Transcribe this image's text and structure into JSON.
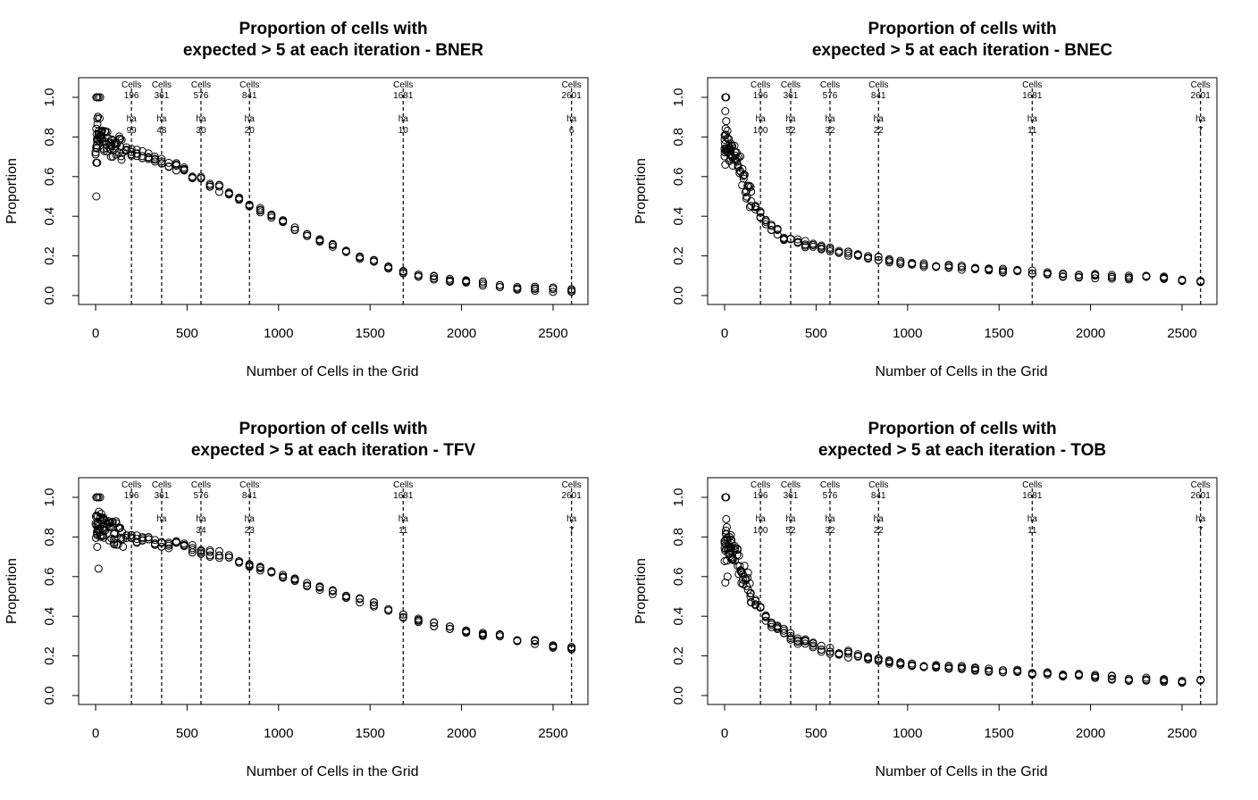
{
  "chart_data": [
    {
      "type": "scatter",
      "title": [
        "Proportion of cells with",
        "expected > 5 at each iteration -  BNER"
      ],
      "xlabel": "Number of Cells in the Grid",
      "ylabel": "Proportion",
      "xlim": [
        0,
        2600
      ],
      "ylim": [
        0,
        1
      ],
      "x_ticks": [
        "0",
        "500",
        "1000",
        "1500",
        "2000",
        "2500"
      ],
      "y_ticks": [
        "0.0",
        "0.2",
        "0.4",
        "0.6",
        "0.8",
        "1.0"
      ],
      "marker": "open-circle",
      "grid": false,
      "reference_lines": [
        {
          "x": 196,
          "cells_label": "Cells",
          "cells_value": "196",
          "ha_label": "ha",
          "ha_value": "99"
        },
        {
          "x": 361,
          "cells_label": "Cells",
          "cells_value": "361",
          "ha_label": "ha",
          "ha_value": "48"
        },
        {
          "x": 576,
          "cells_label": "Cells",
          "cells_value": "576",
          "ha_label": "ha",
          "ha_value": "30"
        },
        {
          "x": 841,
          "cells_label": "Cells",
          "cells_value": "841",
          "ha_label": "ha",
          "ha_value": "20"
        },
        {
          "x": 1681,
          "cells_label": "Cells",
          "cells_value": "1681",
          "ha_label": "ha",
          "ha_value": "10"
        },
        {
          "x": 2601,
          "cells_label": "Cells",
          "cells_value": "2601",
          "ha_label": "ha",
          "ha_value": "6"
        }
      ],
      "x": [
        4,
        9,
        16,
        25,
        36,
        49,
        64,
        81,
        100,
        121,
        144,
        169,
        196,
        225,
        256,
        289,
        324,
        361,
        400,
        441,
        484,
        529,
        576,
        625,
        676,
        729,
        784,
        841,
        900,
        961,
        1024,
        1089,
        1156,
        1225,
        1296,
        1369,
        1444,
        1521,
        1600,
        1681,
        1764,
        1849,
        1936,
        2025,
        2116,
        2209,
        2304,
        2401,
        2500,
        2601
      ],
      "y": [
        0.75,
        0.8,
        0.85,
        0.82,
        0.79,
        0.78,
        0.77,
        0.76,
        0.75,
        0.75,
        0.74,
        0.73,
        0.72,
        0.72,
        0.71,
        0.7,
        0.69,
        0.68,
        0.66,
        0.65,
        0.63,
        0.61,
        0.58,
        0.56,
        0.54,
        0.52,
        0.49,
        0.46,
        0.43,
        0.4,
        0.37,
        0.34,
        0.31,
        0.28,
        0.25,
        0.22,
        0.19,
        0.17,
        0.14,
        0.12,
        0.1,
        0.09,
        0.08,
        0.07,
        0.06,
        0.05,
        0.04,
        0.035,
        0.03,
        0.025
      ],
      "outliers": [
        [
          4,
          1.0
        ],
        [
          9,
          1.0
        ],
        [
          16,
          1.0
        ],
        [
          25,
          1.0
        ],
        [
          4,
          0.67
        ],
        [
          9,
          0.67
        ],
        [
          4,
          0.5
        ]
      ]
    },
    {
      "type": "scatter",
      "title": [
        "Proportion of cells with",
        "expected > 5 at each iteration -  BNEC"
      ],
      "xlabel": "Number of Cells in the Grid",
      "ylabel": "Proportion",
      "xlim": [
        0,
        2600
      ],
      "ylim": [
        0,
        1
      ],
      "x_ticks": [
        "0",
        "500",
        "1000",
        "1500",
        "2000",
        "2500"
      ],
      "y_ticks": [
        "0.0",
        "0.2",
        "0.4",
        "0.6",
        "0.8",
        "1.0"
      ],
      "marker": "open-circle",
      "grid": false,
      "reference_lines": [
        {
          "x": 196,
          "cells_label": "Cells",
          "cells_value": "196",
          "ha_label": "ha",
          "ha_value": "100"
        },
        {
          "x": 361,
          "cells_label": "Cells",
          "cells_value": "361",
          "ha_label": "ha",
          "ha_value": "52"
        },
        {
          "x": 576,
          "cells_label": "Cells",
          "cells_value": "576",
          "ha_label": "ha",
          "ha_value": "32"
        },
        {
          "x": 841,
          "cells_label": "Cells",
          "cells_value": "841",
          "ha_label": "ha",
          "ha_value": "22"
        },
        {
          "x": 1681,
          "cells_label": "Cells",
          "cells_value": "1681",
          "ha_label": "ha",
          "ha_value": "11"
        },
        {
          "x": 2601,
          "cells_label": "Cells",
          "cells_value": "2601",
          "ha_label": "ha",
          "ha_value": "7"
        }
      ],
      "x": [
        4,
        9,
        16,
        25,
        36,
        49,
        64,
        81,
        100,
        121,
        144,
        169,
        196,
        225,
        256,
        289,
        324,
        361,
        400,
        441,
        484,
        529,
        576,
        625,
        676,
        729,
        784,
        841,
        900,
        961,
        1024,
        1089,
        1156,
        1225,
        1296,
        1369,
        1444,
        1521,
        1600,
        1681,
        1764,
        1849,
        1936,
        2025,
        2116,
        2209,
        2304,
        2401,
        2500,
        2601
      ],
      "y": [
        0.75,
        0.8,
        0.78,
        0.75,
        0.72,
        0.7,
        0.68,
        0.65,
        0.6,
        0.55,
        0.5,
        0.45,
        0.41,
        0.37,
        0.34,
        0.32,
        0.3,
        0.28,
        0.27,
        0.26,
        0.25,
        0.24,
        0.23,
        0.22,
        0.21,
        0.2,
        0.195,
        0.185,
        0.175,
        0.17,
        0.16,
        0.155,
        0.15,
        0.145,
        0.14,
        0.135,
        0.13,
        0.125,
        0.12,
        0.115,
        0.11,
        0.105,
        0.1,
        0.098,
        0.095,
        0.09,
        0.088,
        0.085,
        0.08,
        0.075
      ],
      "outliers": [
        [
          4,
          1.0
        ],
        [
          9,
          1.0
        ],
        [
          4,
          0.93
        ],
        [
          9,
          0.88
        ],
        [
          4,
          0.66
        ]
      ]
    },
    {
      "type": "scatter",
      "title": [
        "Proportion of cells with",
        "expected > 5 at each iteration -  TFV"
      ],
      "xlabel": "Number of Cells in the Grid",
      "ylabel": "Proportion",
      "xlim": [
        0,
        2600
      ],
      "ylim": [
        0,
        1
      ],
      "x_ticks": [
        "0",
        "500",
        "1000",
        "1500",
        "2000",
        "2500"
      ],
      "y_ticks": [
        "0.0",
        "0.2",
        "0.4",
        "0.6",
        "0.8",
        "1.0"
      ],
      "marker": "open-circle",
      "grid": false,
      "reference_lines": [
        {
          "x": 196,
          "cells_label": "Cells",
          "cells_value": "196",
          "ha_label": "",
          "ha_value": ""
        },
        {
          "x": 361,
          "cells_label": "Cells",
          "cells_value": "361",
          "ha_label": "ha",
          "ha_value": ""
        },
        {
          "x": 576,
          "cells_label": "Cells",
          "cells_value": "576",
          "ha_label": "ha",
          "ha_value": "34"
        },
        {
          "x": 841,
          "cells_label": "Cells",
          "cells_value": "841",
          "ha_label": "ha",
          "ha_value": "23"
        },
        {
          "x": 1681,
          "cells_label": "Cells",
          "cells_value": "1681",
          "ha_label": "ha",
          "ha_value": "11"
        },
        {
          "x": 2601,
          "cells_label": "Cells",
          "cells_value": "2601",
          "ha_label": "ha",
          "ha_value": "7"
        }
      ],
      "x": [
        4,
        9,
        16,
        25,
        36,
        49,
        64,
        81,
        100,
        121,
        144,
        169,
        196,
        225,
        256,
        289,
        324,
        361,
        400,
        441,
        484,
        529,
        576,
        625,
        676,
        729,
        784,
        841,
        900,
        961,
        1024,
        1089,
        1156,
        1225,
        1296,
        1369,
        1444,
        1521,
        1600,
        1681,
        1764,
        1849,
        1936,
        2025,
        2116,
        2209,
        2304,
        2401,
        2500,
        2601
      ],
      "y": [
        0.85,
        0.87,
        0.88,
        0.86,
        0.85,
        0.84,
        0.84,
        0.83,
        0.82,
        0.82,
        0.81,
        0.8,
        0.8,
        0.79,
        0.79,
        0.78,
        0.77,
        0.77,
        0.76,
        0.76,
        0.75,
        0.74,
        0.73,
        0.72,
        0.71,
        0.7,
        0.68,
        0.66,
        0.64,
        0.62,
        0.6,
        0.58,
        0.56,
        0.54,
        0.52,
        0.5,
        0.48,
        0.46,
        0.43,
        0.4,
        0.38,
        0.36,
        0.34,
        0.32,
        0.31,
        0.3,
        0.28,
        0.27,
        0.25,
        0.24
      ],
      "outliers": [
        [
          4,
          1.0
        ],
        [
          9,
          1.0
        ],
        [
          16,
          1.0
        ],
        [
          25,
          1.0
        ],
        [
          9,
          0.75
        ],
        [
          16,
          0.64
        ]
      ]
    },
    {
      "type": "scatter",
      "title": [
        "Proportion of cells with",
        "expected > 5 at each iteration -  TOB"
      ],
      "xlabel": "Number of Cells in the Grid",
      "ylabel": "Proportion",
      "xlim": [
        0,
        2600
      ],
      "ylim": [
        0,
        1
      ],
      "x_ticks": [
        "0",
        "500",
        "1000",
        "1500",
        "2000",
        "2500"
      ],
      "y_ticks": [
        "0.0",
        "0.2",
        "0.4",
        "0.6",
        "0.8",
        "1.0"
      ],
      "marker": "open-circle",
      "grid": false,
      "reference_lines": [
        {
          "x": 196,
          "cells_label": "Cells",
          "cells_value": "196",
          "ha_label": "ha",
          "ha_value": "100"
        },
        {
          "x": 361,
          "cells_label": "Cells",
          "cells_value": "361",
          "ha_label": "ha",
          "ha_value": "52"
        },
        {
          "x": 576,
          "cells_label": "Cells",
          "cells_value": "576",
          "ha_label": "ha",
          "ha_value": "32"
        },
        {
          "x": 841,
          "cells_label": "Cells",
          "cells_value": "841",
          "ha_label": "ha",
          "ha_value": "22"
        },
        {
          "x": 1681,
          "cells_label": "Cells",
          "cells_value": "1681",
          "ha_label": "ha",
          "ha_value": "11"
        },
        {
          "x": 2601,
          "cells_label": "Cells",
          "cells_value": "2601",
          "ha_label": "ha",
          "ha_value": "7"
        }
      ],
      "x": [
        4,
        9,
        16,
        25,
        36,
        49,
        64,
        81,
        100,
        121,
        144,
        169,
        196,
        225,
        256,
        289,
        324,
        361,
        400,
        441,
        484,
        529,
        576,
        625,
        676,
        729,
        784,
        841,
        900,
        961,
        1024,
        1089,
        1156,
        1225,
        1296,
        1369,
        1444,
        1521,
        1600,
        1681,
        1764,
        1849,
        1936,
        2025,
        2116,
        2209,
        2304,
        2401,
        2500,
        2601
      ],
      "y": [
        0.72,
        0.78,
        0.8,
        0.76,
        0.74,
        0.72,
        0.7,
        0.66,
        0.62,
        0.57,
        0.52,
        0.47,
        0.43,
        0.39,
        0.36,
        0.34,
        0.32,
        0.3,
        0.28,
        0.265,
        0.25,
        0.24,
        0.23,
        0.22,
        0.21,
        0.2,
        0.19,
        0.18,
        0.17,
        0.165,
        0.16,
        0.155,
        0.15,
        0.145,
        0.14,
        0.135,
        0.13,
        0.125,
        0.12,
        0.115,
        0.11,
        0.105,
        0.1,
        0.095,
        0.09,
        0.085,
        0.08,
        0.078,
        0.075,
        0.07
      ],
      "outliers": [
        [
          4,
          1.0
        ],
        [
          9,
          1.0
        ],
        [
          9,
          0.89
        ],
        [
          4,
          0.57
        ],
        [
          16,
          0.6
        ]
      ]
    }
  ]
}
